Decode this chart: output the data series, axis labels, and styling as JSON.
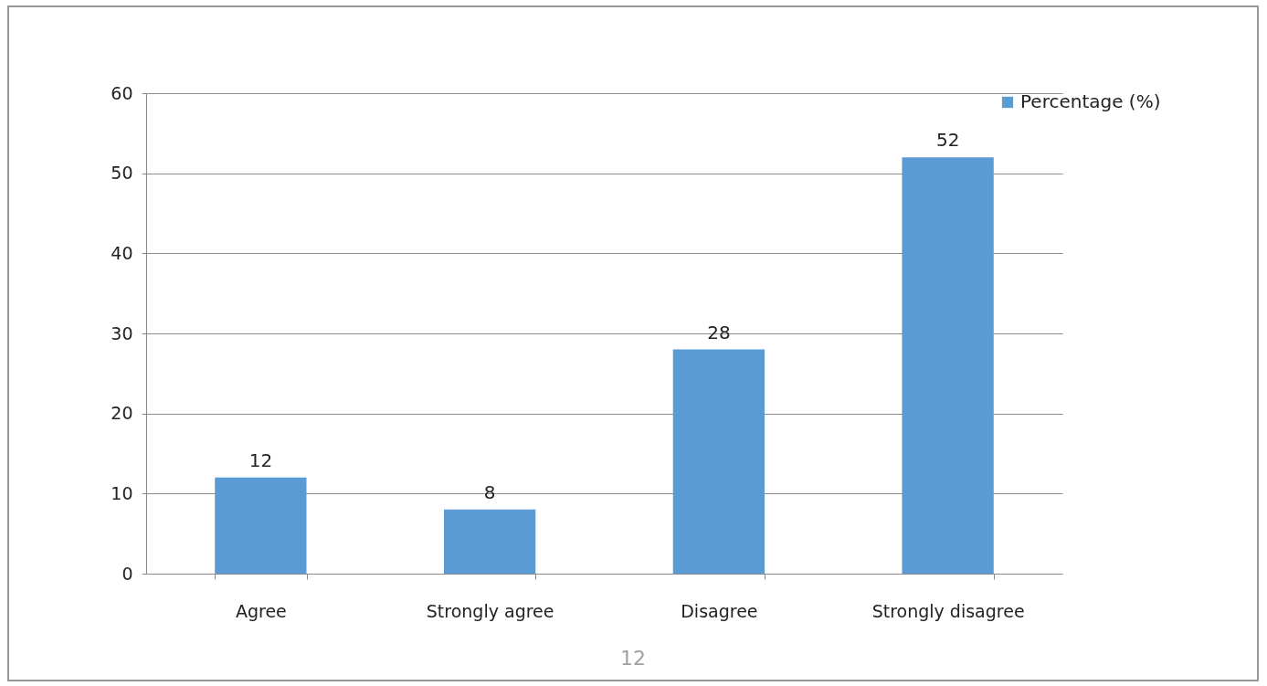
{
  "chart_data": {
    "type": "bar",
    "categories": [
      "Agree",
      "Strongly agree",
      "Disagree",
      "Strongly  disagree"
    ],
    "series": [
      {
        "name": "Percentage (%)",
        "color": "#5b9bd5",
        "values": [
          12,
          8,
          28,
          52
        ]
      }
    ],
    "ylim": [
      0,
      60
    ],
    "yticks": [
      0,
      10,
      20,
      30,
      40,
      50,
      60
    ],
    "grid": "y",
    "legend": "right",
    "data_labels": true,
    "annotations": [
      "12"
    ]
  }
}
